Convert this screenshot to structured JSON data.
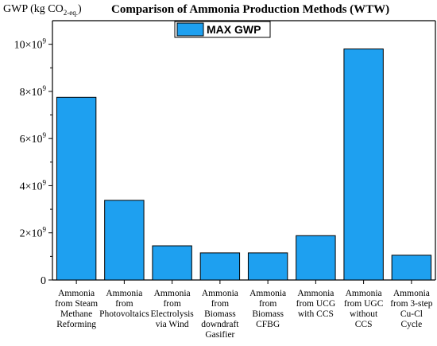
{
  "chart_data": {
    "type": "bar",
    "title": "Comparison of Ammonia Production Methods (WTW)",
    "ylabel_main": "GWP (kg CO",
    "ylabel_sub": "2-eq.",
    "ylabel_end": ")",
    "ylim": [
      0,
      11000000000
    ],
    "yticks": [
      {
        "value": 0,
        "label": "0"
      },
      {
        "value": 2000000000,
        "base": "2×10",
        "exp": "9"
      },
      {
        "value": 4000000000,
        "base": "4×10",
        "exp": "9"
      },
      {
        "value": 6000000000,
        "base": "6×10",
        "exp": "9"
      },
      {
        "value": 8000000000,
        "base": "8×10",
        "exp": "9"
      },
      {
        "value": 10000000000,
        "base": "10×10",
        "exp": "9"
      }
    ],
    "categories": [
      [
        "Ammonia",
        "from Steam",
        "Methane",
        "Reforming"
      ],
      [
        "Ammonia",
        "from",
        "Photovoltaics"
      ],
      [
        "Ammonia",
        "from",
        "Electrolysis",
        "via Wind"
      ],
      [
        "Ammonia",
        "from",
        "Biomass",
        "downdraft",
        "Gasifier"
      ],
      [
        "Ammonia",
        "from",
        "Biomass",
        "CFBG"
      ],
      [
        "Ammonia",
        "from UCG",
        "with CCS"
      ],
      [
        "Ammonia",
        "from UGC",
        "without",
        "CCS"
      ],
      [
        "Ammonia",
        "from 3-step",
        "Cu-Cl",
        "Cycle"
      ]
    ],
    "series": [
      {
        "name": "MAX GWP",
        "color": "#1ea0f0",
        "values": [
          7750000000,
          3380000000,
          1450000000,
          1150000000,
          1150000000,
          1880000000,
          9800000000,
          1050000000
        ]
      }
    ],
    "legend_position": "top-center",
    "grid": false
  }
}
